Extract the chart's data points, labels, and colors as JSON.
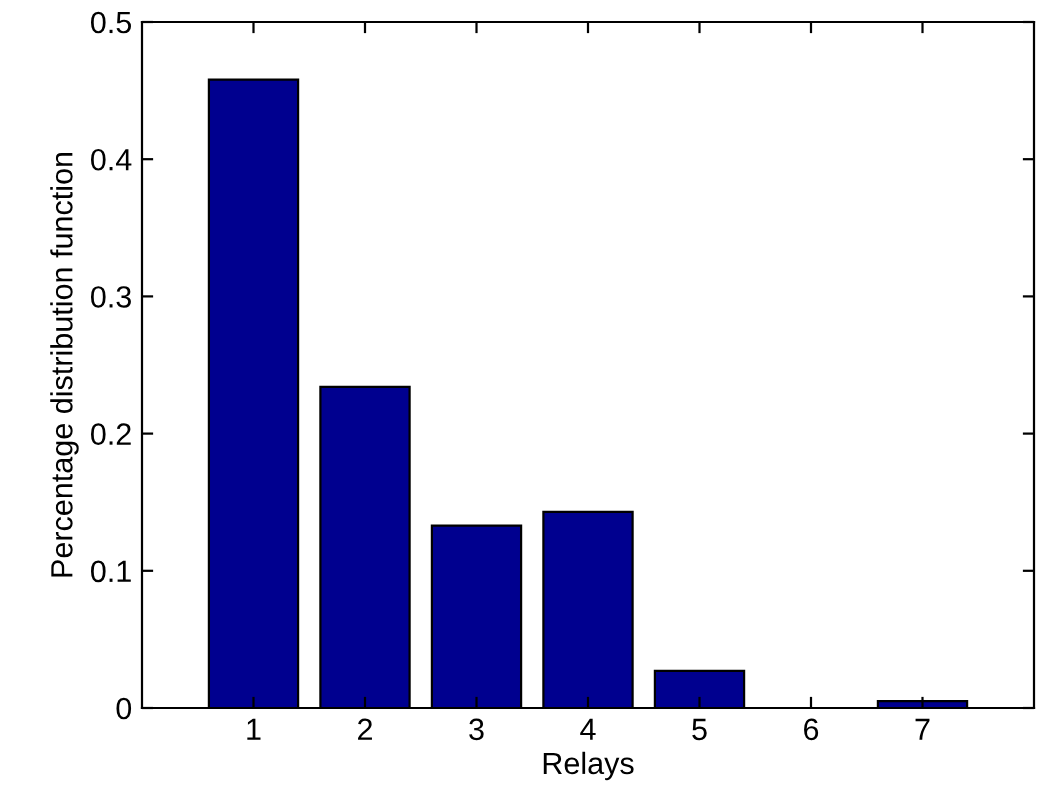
{
  "chart_data": {
    "type": "bar",
    "xlabel": "Relays",
    "ylabel": "Percentage distribution function",
    "x": [
      1,
      2,
      3,
      4,
      5,
      6,
      7
    ],
    "values": [
      0.458,
      0.234,
      0.133,
      0.143,
      0.027,
      0,
      0.005
    ],
    "color": "#00008f",
    "xlim": [
      0,
      8
    ],
    "xticks": [
      1,
      2,
      3,
      4,
      5,
      6,
      7
    ],
    "ylim": [
      0,
      0.5
    ],
    "yticks": [
      0,
      0.1,
      0.2,
      0.3,
      0.4,
      0.5
    ],
    "grid": false,
    "legend": false
  }
}
